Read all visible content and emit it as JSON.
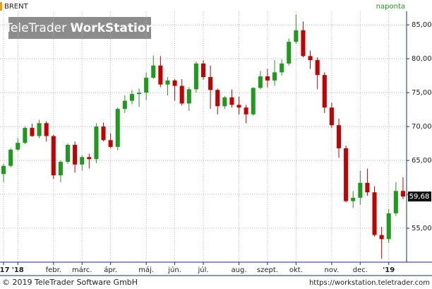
{
  "chart_data": {
    "type": "candlestick",
    "title": "BRENT",
    "interval": "naponta",
    "logo": [
      "TeleTrader",
      "WorkStation"
    ],
    "footer_left": "© 2019 TeleTrader Software GmbH",
    "footer_right": "https://workstation.teletrader.com",
    "categories": [
      "'17",
      null,
      "'18",
      null,
      null,
      null,
      null,
      "febr.",
      null,
      null,
      null,
      "márc.",
      null,
      null,
      null,
      "ápr.",
      null,
      null,
      null,
      null,
      "máj.",
      null,
      null,
      null,
      "jún.",
      null,
      null,
      null,
      "júl.",
      null,
      null,
      null,
      null,
      "aug.",
      null,
      null,
      null,
      "szept.",
      null,
      null,
      null,
      "okt.",
      null,
      null,
      null,
      null,
      "nov.",
      null,
      null,
      null,
      "dec.",
      null,
      null,
      null,
      "'19",
      null,
      null
    ],
    "open": [
      63.0,
      64.2,
      66.6,
      67.6,
      69.8,
      68.6,
      70.5,
      68.6,
      62.8,
      64.8,
      67.3,
      64.4,
      65.5,
      65.2,
      70.0,
      68.0,
      67.0,
      72.6,
      73.8,
      74.8,
      75.0,
      77.2,
      79.0,
      76.2,
      76.8,
      76.0,
      73.4,
      75.5,
      79.3,
      77.3,
      75.4,
      73.0,
      74.3,
      73.2,
      72.8,
      71.8,
      75.7,
      77.4,
      76.8,
      78.0,
      79.3,
      82.5,
      84.2,
      80.4,
      79.8,
      77.6,
      72.8,
      70.2,
      66.8,
      59.0,
      59.5,
      61.7,
      60.3,
      54.0,
      53.4,
      57.2,
      60.5
    ],
    "high": [
      64.5,
      66.8,
      68.3,
      70.0,
      70.4,
      71.0,
      70.8,
      68.8,
      65.0,
      67.5,
      67.8,
      65.8,
      66.0,
      70.5,
      70.6,
      69.0,
      72.8,
      74.6,
      75.4,
      75.6,
      78.0,
      80.5,
      80.4,
      77.3,
      77.0,
      77.0,
      75.8,
      79.6,
      79.8,
      79.0,
      75.6,
      74.5,
      75.5,
      74.4,
      73.2,
      75.8,
      78.2,
      78.5,
      79.8,
      79.9,
      83.0,
      86.5,
      85.5,
      81.2,
      80.2,
      78.0,
      73.5,
      71.2,
      67.2,
      60.5,
      63.5,
      63.8,
      61.2,
      55.2,
      57.8,
      61.8,
      62.5
    ],
    "low": [
      61.8,
      64.0,
      66.4,
      67.4,
      68.5,
      68.3,
      67.8,
      62.3,
      61.8,
      64.5,
      63.2,
      63.5,
      63.8,
      64.6,
      67.8,
      66.8,
      66.5,
      72.0,
      73.3,
      72.9,
      73.9,
      77.0,
      75.8,
      74.6,
      73.8,
      73.1,
      72.3,
      75.0,
      76.9,
      72.6,
      71.8,
      72.6,
      72.8,
      71.8,
      70.5,
      71.6,
      75.5,
      75.8,
      76.0,
      77.5,
      79.0,
      82.2,
      80.2,
      78.5,
      75.5,
      72.0,
      69.8,
      65.4,
      58.8,
      58.0,
      58.5,
      59.8,
      53.8,
      50.5,
      52.8,
      56.8,
      59.3
    ],
    "close": [
      64.2,
      66.6,
      67.6,
      69.8,
      68.6,
      70.5,
      68.6,
      62.8,
      64.8,
      67.3,
      64.4,
      65.5,
      65.2,
      70.0,
      68.0,
      67.0,
      72.6,
      73.8,
      74.8,
      75.0,
      77.2,
      79.0,
      76.2,
      76.8,
      76.0,
      73.4,
      75.5,
      79.3,
      77.3,
      75.4,
      73.0,
      74.3,
      73.2,
      72.8,
      71.8,
      75.7,
      77.4,
      76.8,
      78.0,
      79.3,
      82.5,
      84.2,
      80.4,
      79.8,
      77.6,
      72.8,
      70.2,
      66.8,
      59.0,
      59.5,
      61.7,
      60.3,
      54.0,
      53.4,
      57.2,
      60.5,
      59.68
    ],
    "up_color": "#1f9a1f",
    "down_color": "#c40000",
    "last_label": {
      "value": 59.68,
      "label": "59,68"
    },
    "ylim": [
      50,
      87
    ],
    "yticks": [
      {
        "value": 55,
        "label": "55,00"
      },
      {
        "value": 60,
        "label": "60,00"
      },
      {
        "value": 65,
        "label": "65,00"
      },
      {
        "value": 70,
        "label": "70,00"
      },
      {
        "value": 75,
        "label": "75,00"
      },
      {
        "value": 80,
        "label": "80,00"
      },
      {
        "value": 85,
        "label": "85,00"
      }
    ],
    "grid": true
  }
}
